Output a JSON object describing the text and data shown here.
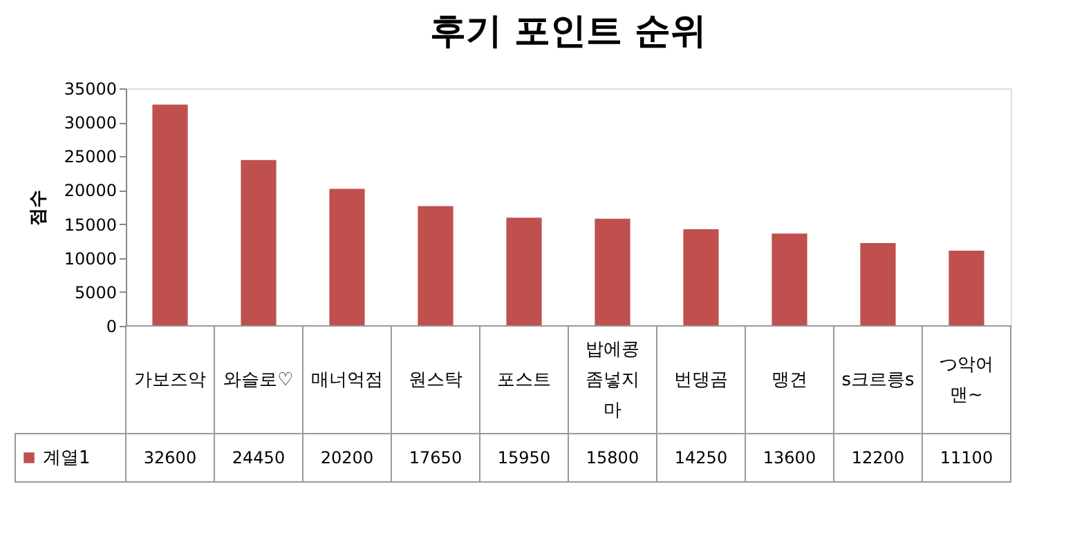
{
  "chart_data": {
    "type": "bar",
    "title": "후기 포인트 순위",
    "ylabel": "점수",
    "categories": [
      "가보즈악",
      "와슬로♡",
      "매너억점",
      "원스탁",
      "포스트",
      "밥에콩좀넣지마",
      "번댕곰",
      "맹견",
      "s크르릉s",
      "つ악어맨~"
    ],
    "series": [
      {
        "name": "계열1",
        "color": "#c0504d",
        "values": [
          32600,
          24450,
          20200,
          17650,
          15950,
          15800,
          14250,
          13600,
          12200,
          11100
        ]
      }
    ],
    "ylim": [
      0,
      35000
    ],
    "yticks": [
      0,
      5000,
      10000,
      15000,
      20000,
      25000,
      30000,
      35000
    ],
    "grid": false,
    "legend": "bottom",
    "data_labels": true
  }
}
